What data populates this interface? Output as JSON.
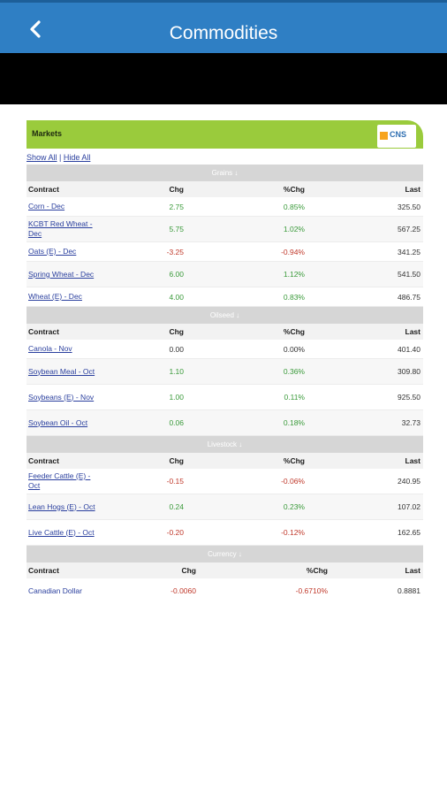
{
  "header": {
    "title": "Commodities",
    "back_icon": "chevron-left-icon"
  },
  "panel": {
    "label": "Markets",
    "logo_text": "CNS"
  },
  "links": {
    "show_all": "Show All",
    "separator": " | ",
    "hide_all": "Hide All"
  },
  "columns": {
    "contract": "Contract",
    "chg": "Chg",
    "pct": "%Chg",
    "last": "Last"
  },
  "sections": [
    {
      "name": "Grains ↓",
      "rows": [
        {
          "contract": "Corn - Dec",
          "chg": "2.75",
          "pct": "0.85%",
          "last": "325.50",
          "trend": "pos"
        },
        {
          "contract": "KCBT Red Wheat - Dec",
          "chg": "5.75",
          "pct": "1.02%",
          "last": "567.25",
          "trend": "pos"
        },
        {
          "contract": "Oats (E) - Dec",
          "chg": "-3.25",
          "pct": "-0.94%",
          "last": "341.25",
          "trend": "neg"
        },
        {
          "contract": "Spring Wheat - Dec",
          "chg": "6.00",
          "pct": "1.12%",
          "last": "541.50",
          "trend": "pos"
        },
        {
          "contract": "Wheat (E) - Dec",
          "chg": "4.00",
          "pct": "0.83%",
          "last": "486.75",
          "trend": "pos"
        }
      ]
    },
    {
      "name": "Oilseed ↓",
      "rows": [
        {
          "contract": "Canola - Nov",
          "chg": "0.00",
          "pct": "0.00%",
          "last": "401.40",
          "trend": "neu"
        },
        {
          "contract": "Soybean Meal - Oct",
          "chg": "1.10",
          "pct": "0.36%",
          "last": "309.80",
          "trend": "pos"
        },
        {
          "contract": "Soybeans (E) - Nov",
          "chg": "1.00",
          "pct": "0.11%",
          "last": "925.50",
          "trend": "pos"
        },
        {
          "contract": "Soybean Oil - Oct",
          "chg": "0.06",
          "pct": "0.18%",
          "last": "32.73",
          "trend": "pos"
        }
      ]
    },
    {
      "name": "Livestock ↓",
      "rows": [
        {
          "contract": "Feeder Cattle (E) - Oct",
          "chg": "-0.15",
          "pct": "-0.06%",
          "last": "240.95",
          "trend": "neg"
        },
        {
          "contract": "Lean Hogs (E) - Oct",
          "chg": "0.24",
          "pct": "0.23%",
          "last": "107.02",
          "trend": "pos"
        },
        {
          "contract": "Live Cattle (E) - Oct",
          "chg": "-0.20",
          "pct": "-0.12%",
          "last": "162.65",
          "trend": "neg"
        }
      ]
    },
    {
      "name": "Currency ↓",
      "rows": [
        {
          "contract": "Canadian Dollar",
          "chg": "-0.0060",
          "pct": "-0.6710%",
          "last": "0.8881",
          "trend": "neg"
        }
      ]
    }
  ],
  "colors": {
    "header": "#2f7fc4",
    "panel": "#9acb3c",
    "positive": "#3a9a3a",
    "negative": "#c0392b",
    "link": "#2a3f9e"
  }
}
